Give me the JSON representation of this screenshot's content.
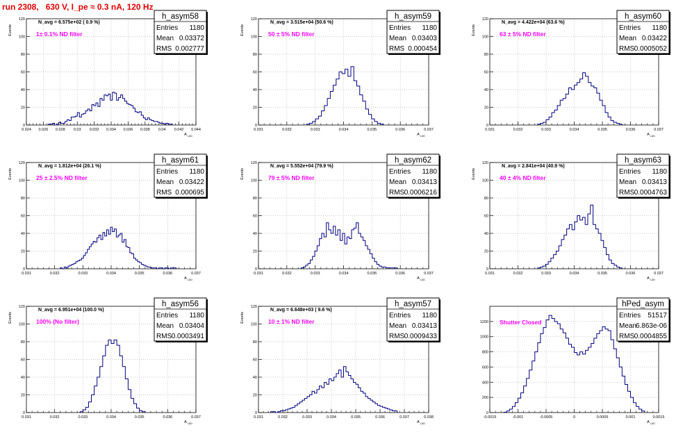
{
  "run_title": "run 2308,   630 V, I_pe ≈ 0.3 nA, 120 Hz",
  "colors": {
    "line": "#00007f",
    "annotation": "#ff00ff",
    "title": "#e00000",
    "grid": "#b4b4b4",
    "axis": "#000000"
  },
  "chart_data": [
    {
      "type": "histogram",
      "name": "h_asym58",
      "stats": {
        "entries": "1180",
        "mean": "0.03372",
        "rms": "0.002777"
      },
      "n_avg_label": "N_avg = 6.575e+02 ( 0.9 %)",
      "annotation": "1± 0.1% ND filter",
      "ylabel": "Events",
      "xlabel": "A",
      "xlim": [
        0.024,
        0.044
      ],
      "ylim": [
        0,
        120
      ],
      "xticks": [
        0.024,
        0.026,
        0.028,
        0.03,
        0.032,
        0.034,
        0.036,
        0.038,
        0.04,
        0.042,
        0.044
      ],
      "xtick_labels": [
        "0.024",
        "0.026",
        "0.028",
        "0.03",
        "0.032",
        "0.034",
        "0.036",
        "0.038",
        "0.04",
        "0.042",
        "0.044"
      ],
      "yticks": [
        0,
        20,
        40,
        60,
        80,
        100,
        120
      ],
      "ytick_labels": [
        "0",
        "20",
        "40",
        "60",
        "80",
        "100",
        "120"
      ],
      "bins": {
        "xmin": 0.0266,
        "xmax": 0.0412,
        "values": [
          1,
          1,
          2,
          0,
          1,
          3,
          2,
          2,
          4,
          6,
          5,
          9,
          9,
          10,
          14,
          9,
          12,
          13,
          16,
          18,
          16,
          23,
          22,
          25,
          21,
          30,
          28,
          34,
          33,
          35,
          28,
          37,
          36,
          28,
          31,
          34,
          30,
          27,
          24,
          23,
          22,
          19,
          15,
          14,
          15,
          11,
          8,
          6,
          8,
          6,
          5,
          4,
          4,
          3,
          2,
          2,
          1,
          2,
          1,
          1
        ]
      }
    },
    {
      "type": "histogram",
      "name": "h_asym59",
      "stats": {
        "entries": "1180",
        "mean": "0.03403",
        "rms": "0.000454"
      },
      "n_avg_label": "N_avg = 3.515e+04 (50.6 %)",
      "annotation": "50 ± 5% ND filter",
      "ylabel": "Events",
      "xlabel": "A",
      "xlim": [
        0.031,
        0.037
      ],
      "ylim": [
        0,
        120
      ],
      "xticks": [
        0.031,
        0.032,
        0.033,
        0.034,
        0.035,
        0.036,
        0.037
      ],
      "xtick_labels": [
        "0.031",
        "0.032",
        "0.033",
        "0.034",
        "0.035",
        "0.036",
        "0.037"
      ],
      "yticks": [
        0,
        20,
        40,
        60,
        80,
        100,
        120
      ],
      "ytick_labels": [
        "0",
        "20",
        "40",
        "60",
        "80",
        "100",
        "120"
      ],
      "bins": {
        "xmin": 0.0327,
        "xmax": 0.0354,
        "values": [
          1,
          2,
          4,
          7,
          10,
          16,
          22,
          30,
          38,
          45,
          52,
          60,
          58,
          63,
          55,
          66,
          50,
          44,
          34,
          27,
          18,
          12,
          7,
          4,
          2,
          1
        ]
      }
    },
    {
      "type": "histogram",
      "name": "h_asym60",
      "stats": {
        "entries": "1180",
        "mean": "0.03422",
        "rms": "0.0005052"
      },
      "n_avg_label": "N_avg = 4.422e+04 (63.6 %)",
      "annotation": "63 ± 5% ND filter",
      "ylabel": "Events",
      "xlabel": "A",
      "xlim": [
        0.031,
        0.037
      ],
      "ylim": [
        0,
        120
      ],
      "xticks": [
        0.031,
        0.032,
        0.033,
        0.034,
        0.035,
        0.036,
        0.037
      ],
      "xtick_labels": [
        "0.031",
        "0.032",
        "0.033",
        "0.034",
        "0.035",
        "0.036",
        "0.037"
      ],
      "yticks": [
        0,
        20,
        40,
        60,
        80,
        100,
        120
      ],
      "ytick_labels": [
        "0",
        "20",
        "40",
        "60",
        "80",
        "100",
        "120"
      ],
      "bins": {
        "xmin": 0.0327,
        "xmax": 0.0357,
        "values": [
          1,
          2,
          3,
          6,
          9,
          14,
          17,
          22,
          28,
          30,
          35,
          42,
          40,
          45,
          48,
          52,
          59,
          55,
          48,
          44,
          42,
          36,
          28,
          22,
          14,
          9,
          5,
          3,
          2,
          1
        ]
      }
    },
    {
      "type": "histogram",
      "name": "h_asym61",
      "stats": {
        "entries": "1180",
        "mean": "0.03422",
        "rms": "0.000695"
      },
      "n_avg_label": "N_avg = 1.812e+04 (26.1 %)",
      "annotation": "25 ± 2.5% ND filter",
      "ylabel": "Events",
      "xlabel": "A",
      "xlim": [
        0.031,
        0.037
      ],
      "ylim": [
        0,
        120
      ],
      "xticks": [
        0.031,
        0.032,
        0.033,
        0.034,
        0.035,
        0.036,
        0.037
      ],
      "xtick_labels": [
        "0.031",
        "0.032",
        "0.033",
        "0.034",
        "0.035",
        "0.036",
        "0.037"
      ],
      "yticks": [
        0,
        20,
        40,
        60,
        80,
        100,
        120
      ],
      "ytick_labels": [
        "0",
        "20",
        "40",
        "60",
        "80",
        "100",
        "120"
      ],
      "bins": {
        "xmin": 0.0322,
        "xmax": 0.0363,
        "values": [
          1,
          0,
          2,
          1,
          3,
          4,
          5,
          6,
          8,
          9,
          10,
          12,
          15,
          18,
          22,
          25,
          28,
          31,
          30,
          35,
          38,
          33,
          41,
          37,
          44,
          39,
          47,
          42,
          45,
          36,
          38,
          40,
          30,
          33,
          25,
          24,
          18,
          17,
          12,
          10,
          8,
          7,
          5,
          4,
          3,
          2,
          2,
          1,
          1,
          1,
          0,
          1,
          1,
          0,
          1,
          1,
          0,
          1,
          1,
          1
        ]
      }
    },
    {
      "type": "histogram",
      "name": "h_asym62",
      "stats": {
        "entries": "1180",
        "mean": "0.03413",
        "rms": "0.0006216"
      },
      "n_avg_label": "N_avg = 5.552e+04 (79.9 %)",
      "annotation": "79 ± 5% ND filter",
      "ylabel": "Events",
      "xlabel": "A",
      "xlim": [
        0.031,
        0.037
      ],
      "ylim": [
        0,
        120
      ],
      "xticks": [
        0.031,
        0.032,
        0.033,
        0.034,
        0.035,
        0.036,
        0.037
      ],
      "xtick_labels": [
        "0.031",
        "0.032",
        "0.033",
        "0.034",
        "0.035",
        "0.036",
        "0.037"
      ],
      "yticks": [
        0,
        20,
        40,
        60,
        80,
        100,
        120
      ],
      "ytick_labels": [
        "0",
        "20",
        "40",
        "60",
        "80",
        "100",
        "120"
      ],
      "bins": {
        "xmin": 0.0325,
        "xmax": 0.0359,
        "values": [
          1,
          2,
          4,
          6,
          10,
          14,
          20,
          26,
          34,
          40,
          36,
          52,
          44,
          40,
          48,
          38,
          44,
          32,
          40,
          28,
          36,
          34,
          44,
          46,
          52,
          40,
          36,
          32,
          26,
          22,
          17,
          12,
          8,
          5,
          3,
          2,
          2,
          1,
          1,
          1,
          1,
          1
        ]
      }
    },
    {
      "type": "histogram",
      "name": "h_asym63",
      "stats": {
        "entries": "1180",
        "mean": "0.03413",
        "rms": "0.0004763"
      },
      "n_avg_label": "N_avg = 2.841e+04 (40.9 %)",
      "annotation": "40 ± 4% ND filter",
      "ylabel": "Events",
      "xlabel": "A",
      "xlim": [
        0.031,
        0.037
      ],
      "ylim": [
        0,
        120
      ],
      "xticks": [
        0.031,
        0.032,
        0.033,
        0.034,
        0.035,
        0.036,
        0.037
      ],
      "xtick_labels": [
        "0.031",
        "0.032",
        "0.033",
        "0.034",
        "0.035",
        "0.036",
        "0.037"
      ],
      "yticks": [
        0,
        20,
        40,
        60,
        80,
        100,
        120
      ],
      "ytick_labels": [
        "0",
        "20",
        "40",
        "60",
        "80",
        "100",
        "120"
      ],
      "bins": {
        "xmin": 0.0327,
        "xmax": 0.0357,
        "values": [
          1,
          2,
          3,
          5,
          8,
          12,
          16,
          20,
          26,
          33,
          38,
          45,
          50,
          44,
          53,
          60,
          55,
          58,
          50,
          62,
          72,
          50,
          45,
          40,
          32,
          24,
          16,
          10,
          6,
          4,
          2,
          1
        ]
      }
    },
    {
      "type": "histogram",
      "name": "h_asym56",
      "stats": {
        "entries": "1180",
        "mean": "0.03404",
        "rms": "0.0003491"
      },
      "n_avg_label": "N_avg = 6.951e+04 (100.0 %)",
      "annotation": "100% (No filter)",
      "ylabel": "Events",
      "xlabel": "A",
      "xlim": [
        0.031,
        0.037
      ],
      "ylim": [
        0,
        120
      ],
      "xticks": [
        0.031,
        0.032,
        0.033,
        0.034,
        0.035,
        0.036,
        0.037
      ],
      "xtick_labels": [
        "0.031",
        "0.032",
        "0.033",
        "0.034",
        "0.035",
        "0.036",
        "0.037"
      ],
      "yticks": [
        0,
        20,
        40,
        60,
        80,
        100,
        120
      ],
      "ytick_labels": [
        "0",
        "20",
        "40",
        "60",
        "80",
        "100",
        "120"
      ],
      "bins": {
        "xmin": 0.0329,
        "xmax": 0.0352,
        "values": [
          1,
          3,
          6,
          12,
          20,
          30,
          40,
          52,
          64,
          76,
          82,
          78,
          82,
          76,
          64,
          52,
          38,
          26,
          16,
          10,
          5,
          2,
          1
        ]
      }
    },
    {
      "type": "histogram",
      "name": "h_asym57",
      "stats": {
        "entries": "1180",
        "mean": "0.03413",
        "rms": "0.0009433"
      },
      "n_avg_label": "N_avg = 6.648e+03 ( 9.6 %)",
      "annotation": "10 ± 1% ND filter",
      "ylabel": "Events",
      "xlabel": "A",
      "xlim": [
        0.031,
        0.038
      ],
      "ylim": [
        0,
        120
      ],
      "xticks": [
        0.031,
        0.032,
        0.033,
        0.034,
        0.035,
        0.036,
        0.037,
        0.038
      ],
      "xtick_labels": [
        "0.031",
        "0.032",
        "0.033",
        "0.034",
        "0.035",
        "0.036",
        "0.037",
        "0.038"
      ],
      "yticks": [
        0,
        20,
        40,
        60,
        80,
        100,
        120
      ],
      "ytick_labels": [
        "0",
        "20",
        "40",
        "60",
        "80",
        "100",
        "120"
      ],
      "bins": {
        "xmin": 0.0315,
        "xmax": 0.0367,
        "values": [
          1,
          1,
          0,
          1,
          2,
          2,
          3,
          4,
          5,
          6,
          8,
          10,
          12,
          14,
          16,
          18,
          20,
          24,
          22,
          26,
          30,
          28,
          34,
          32,
          38,
          36,
          40,
          44,
          48,
          40,
          52,
          46,
          42,
          38,
          34,
          32,
          28,
          24,
          22,
          18,
          16,
          14,
          12,
          10,
          8,
          7,
          6,
          5,
          4,
          3,
          2,
          2
        ]
      }
    },
    {
      "type": "histogram",
      "name": "hPed_asym",
      "stats": {
        "entries": "51517",
        "mean": "6.863e-06",
        "rms": "0.0004855"
      },
      "annotation": "Shutter Closed",
      "ylabel": "",
      "xlabel": "A",
      "xlim": [
        -0.0015,
        0.0015
      ],
      "ylim": [
        0,
        1400
      ],
      "xticks": [
        -0.0015,
        -0.001,
        -0.0005,
        0,
        0.0005,
        0.001,
        0.0015
      ],
      "xtick_labels": [
        "-0.0015",
        "-0.001",
        "-0.0005",
        "0",
        "0.0005",
        "0.001",
        "0.0015"
      ],
      "yticks": [
        0,
        200,
        400,
        600,
        800,
        1000,
        1200
      ],
      "ytick_labels": [
        "0",
        "200",
        "400",
        "600",
        "800",
        "1000",
        "1200"
      ],
      "bins": {
        "xmin": -0.00125,
        "xmax": 0.00125,
        "values": [
          5,
          20,
          45,
          80,
          130,
          190,
          260,
          350,
          450,
          560,
          680,
          800,
          920,
          1040,
          1120,
          1220,
          1280,
          1240,
          1200,
          1170,
          1100,
          1050,
          980,
          900,
          860,
          790,
          760,
          800,
          770,
          820,
          860,
          910,
          980,
          1040,
          1080,
          1130,
          1100,
          1080,
          960,
          840,
          720,
          600,
          480,
          370,
          280,
          200,
          130,
          80,
          45,
          20
        ]
      }
    }
  ]
}
